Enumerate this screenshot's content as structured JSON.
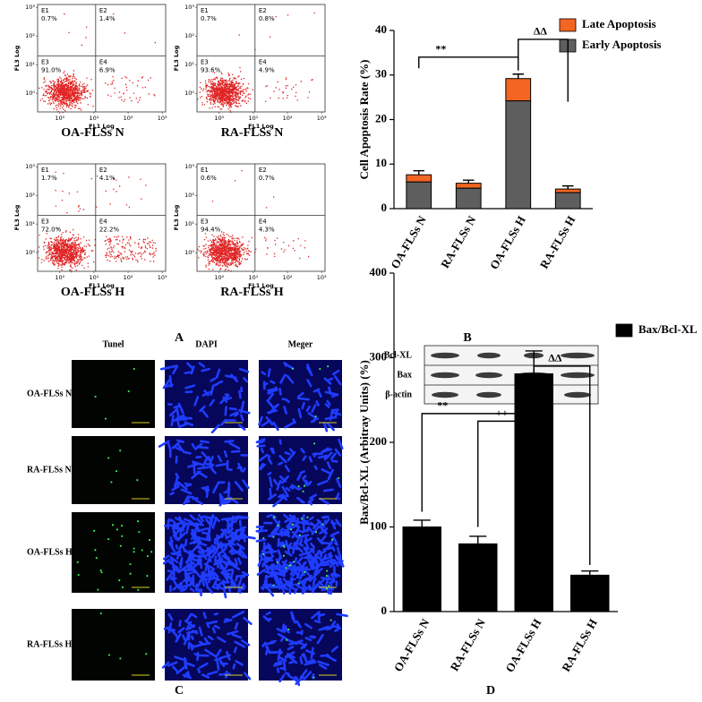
{
  "panel_labels": [
    "A",
    "B",
    "C",
    "D"
  ],
  "flow_cytometry": {
    "x_label": "FL1 Log",
    "y_label": "FL3 Log",
    "x_ticks": [
      "10⁰",
      "10¹",
      "10²",
      "10³"
    ],
    "y_ticks": [
      "10⁰",
      "10¹",
      "10²",
      "10³"
    ],
    "quadrants": [
      "E1",
      "E2",
      "E3",
      "E4"
    ],
    "plots": [
      {
        "title": "OA-FLSs N",
        "percentages": [
          "0.7%",
          "1.4%",
          "91.0%",
          "6.9%"
        ]
      },
      {
        "title": "RA-FLSs N",
        "percentages": [
          "0.7%",
          "0.8%",
          "93.6%",
          "4.9%"
        ]
      },
      {
        "title": "OA-FLSs H",
        "percentages": [
          "1.7%",
          "4.1%",
          "72.0%",
          "22.2%"
        ]
      },
      {
        "title": "RA-FLSs H",
        "percentages": [
          "0.6%",
          "0.7%",
          "94.4%",
          "4.3%"
        ]
      }
    ]
  },
  "microscopy": {
    "columns": [
      "Tunel",
      "DAPI",
      "Meger"
    ],
    "rows": [
      "OA-FLSs N",
      "RA-FLSs N",
      "OA-FLSs H",
      "RA-FLSs H"
    ]
  },
  "western_blot": {
    "proteins": [
      "Bcl-XL",
      "Bax",
      "β-actin"
    ]
  },
  "chart_data": [
    {
      "type": "bar",
      "stacked": true,
      "ylabel": "Cell Apoptosis Rate (%)",
      "categories": [
        "OA-FLSs N",
        "RA-FLSs N",
        "OA-FLSs H",
        "RA-FLSs H"
      ],
      "series": [
        {
          "name": "Early Apoptosis",
          "color": "#5e5e5e",
          "values": [
            6.0,
            4.6,
            24.2,
            3.6
          ],
          "errors": [
            0.7,
            0.6,
            2.8,
            0.5
          ]
        },
        {
          "name": "Late Apoptosis",
          "color": "#f26522",
          "values": [
            1.6,
            1.1,
            5.0,
            0.8
          ],
          "errors": [
            0.9,
            0.7,
            1.0,
            0.7
          ]
        }
      ],
      "ylim": [
        0,
        40
      ],
      "yticks": [
        0,
        10,
        20,
        30,
        40
      ],
      "annotations": [
        "**",
        "ΔΔ"
      ],
      "legend": "upper right"
    },
    {
      "type": "bar",
      "stacked": false,
      "ylabel": "Bax/Bcl-XL (Arbitray Units) (%)",
      "categories": [
        "OA-FLSs N",
        "RA-FLSs N",
        "OA-FLSs H",
        "RA-FLSs H"
      ],
      "series": [
        {
          "name": "Bax/Bcl-XL",
          "color": "#000000",
          "values": [
            100,
            80,
            281,
            43
          ],
          "errors": [
            8,
            9,
            27,
            5
          ]
        }
      ],
      "ylim": [
        0,
        400
      ],
      "yticks": [
        0,
        100,
        200,
        300,
        400
      ],
      "annotations": [
        "**",
        "++",
        "ΔΔ"
      ],
      "legend": "upper right"
    }
  ]
}
